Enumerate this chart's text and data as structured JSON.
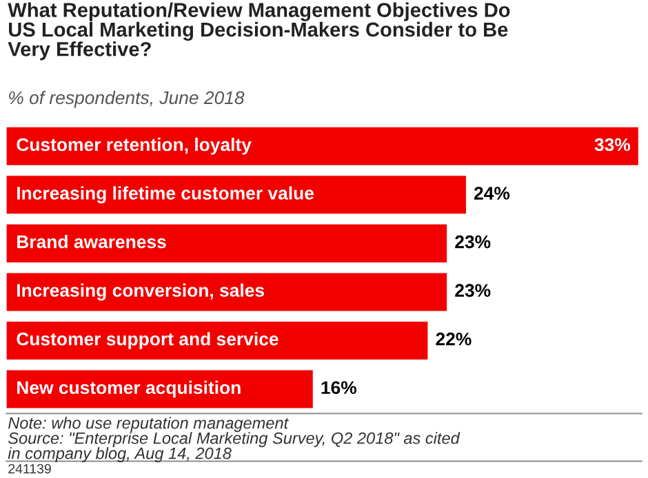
{
  "chart_data": {
    "type": "bar",
    "orientation": "horizontal",
    "title": "What Reputation/Review Management Objectives Do\nUS Local Marketing Decision-Makers Consider to Be\nVery Effective?",
    "subtitle": "% of respondents, June 2018",
    "categories": [
      "Customer retention, loyalty",
      "Increasing lifetime customer value",
      "Brand awareness",
      "Increasing conversion, sales",
      "Customer support and service",
      "New customer acquisition"
    ],
    "values": [
      33,
      24,
      23,
      23,
      22,
      16
    ],
    "value_labels": [
      "33%",
      "24%",
      "23%",
      "23%",
      "22%",
      "16%"
    ],
    "color": "#f20000",
    "annotations": [
      "Note: who use reputation management\nSource: \"Enterprise Local Marketing Survey, Q2 2018\" as cited\nin company blog, Aug 14, 2018",
      "241139"
    ]
  }
}
